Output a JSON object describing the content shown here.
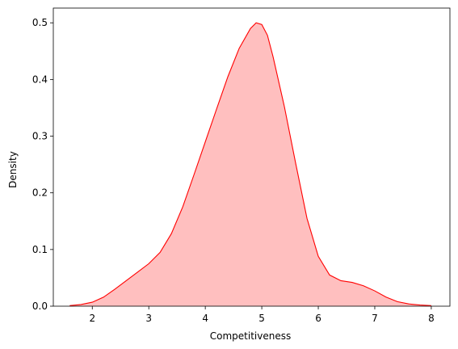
{
  "chart_data": {
    "type": "area",
    "title": "",
    "xlabel": "Competitiveness",
    "ylabel": "Density",
    "xlim": [
      1.31,
      8.33
    ],
    "ylim": [
      0,
      0.526
    ],
    "xticks": [
      2,
      3,
      4,
      5,
      6,
      7,
      8
    ],
    "yticks": [
      0.0,
      0.1,
      0.2,
      0.3,
      0.4,
      0.5
    ],
    "xtick_labels": [
      "2",
      "3",
      "4",
      "5",
      "6",
      "7",
      "8"
    ],
    "ytick_labels": [
      "0.0",
      "0.1",
      "0.2",
      "0.3",
      "0.4",
      "0.5"
    ],
    "grid": false,
    "legend": false,
    "colors": {
      "line": "#ff0000",
      "fill": "#ff0000",
      "fill_opacity": 0.25
    },
    "series": [
      {
        "x": [
          1.6,
          1.8,
          2.0,
          2.2,
          2.4,
          2.6,
          2.8,
          3.0,
          3.2,
          3.4,
          3.6,
          3.8,
          4.0,
          4.2,
          4.4,
          4.6,
          4.8,
          4.9,
          5.0,
          5.1,
          5.2,
          5.4,
          5.6,
          5.8,
          6.0,
          6.2,
          6.4,
          6.6,
          6.8,
          7.0,
          7.2,
          7.4,
          7.6,
          7.8,
          8.0
        ],
        "y": [
          0.001,
          0.003,
          0.007,
          0.016,
          0.03,
          0.045,
          0.06,
          0.075,
          0.095,
          0.128,
          0.175,
          0.232,
          0.29,
          0.348,
          0.405,
          0.455,
          0.49,
          0.5,
          0.497,
          0.478,
          0.44,
          0.352,
          0.252,
          0.155,
          0.088,
          0.055,
          0.045,
          0.042,
          0.036,
          0.027,
          0.016,
          0.008,
          0.004,
          0.002,
          0.001
        ]
      }
    ]
  }
}
